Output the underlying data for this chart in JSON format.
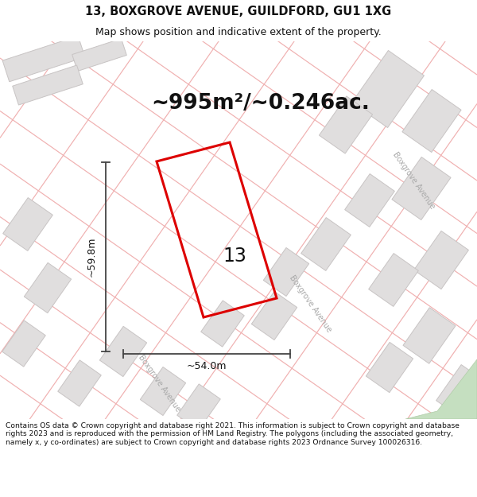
{
  "title": "13, BOXGROVE AVENUE, GUILDFORD, GU1 1XG",
  "subtitle": "Map shows position and indicative extent of the property.",
  "area_label": "~995m²/~0.246ac.",
  "width_label": "~54.0m",
  "height_label": "~59.8m",
  "number_label": "13",
  "footer": "Contains OS data © Crown copyright and database right 2021. This information is subject to Crown copyright and database rights 2023 and is reproduced with the permission of HM Land Registry. The polygons (including the associated geometry, namely x, y co-ordinates) are subject to Crown copyright and database rights 2023 Ordnance Survey 100026316.",
  "road_color": "#f0b0b0",
  "building_fill": "#e0dede",
  "building_edge": "#c8c4c4",
  "map_bg": "#ffffff",
  "red_poly_color": "#dd0000",
  "dim_color": "#444444",
  "text_color": "#111111"
}
